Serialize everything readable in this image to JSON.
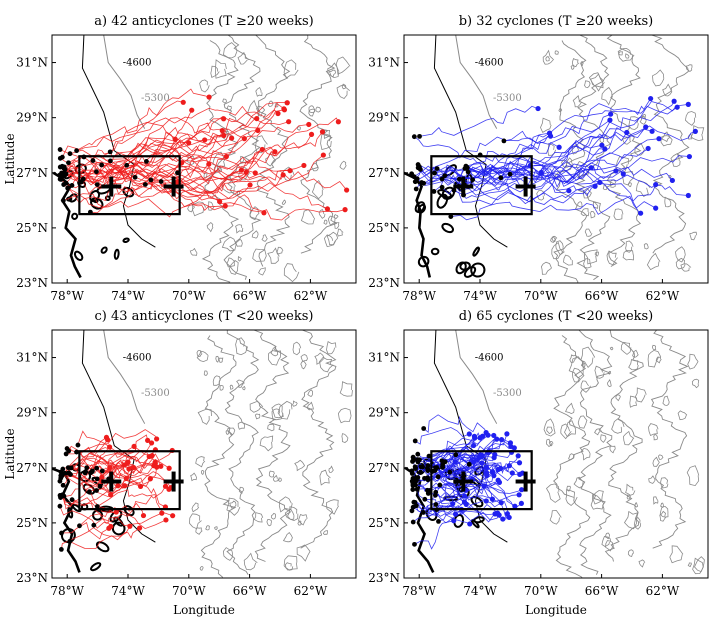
{
  "figure": {
    "x_label": "Longitude",
    "y_label": "Latitude",
    "lon_ticks": [
      "78°W",
      "74°W",
      "70°W",
      "66°W",
      "62°W"
    ],
    "lat_ticks": [
      "31°N",
      "29°N",
      "27°N",
      "25°N",
      "23°N"
    ],
    "contour_labels": [
      "-4600",
      "-5300"
    ],
    "lon_range_deg": [
      -79,
      -59
    ],
    "lat_range_deg": [
      23,
      32
    ],
    "box_deg": {
      "lon": [
        -77.2,
        -70.6
      ],
      "lat": [
        25.5,
        27.6
      ]
    },
    "cross_markers_deg": [
      [
        -75.1,
        26.5
      ],
      [
        -71.0,
        26.5
      ]
    ],
    "colors": {
      "anticyclone": "#ee1c1c",
      "cyclone": "#2020f0",
      "bathymetry": "#8a8a8a",
      "coast": "#000000"
    }
  },
  "panels": [
    {
      "id": "a",
      "title": "a) 42 anticyclones (T ≥20 weeks)",
      "color": "#ee1c1c",
      "count": 42,
      "group": "long"
    },
    {
      "id": "b",
      "title": "b) 32 cyclones (T ≥20 weeks)",
      "color": "#2020f0",
      "count": 32,
      "group": "long"
    },
    {
      "id": "c",
      "title": "c) 43 anticyclones (T <20 weeks)",
      "color": "#ee1c1c",
      "count": 43,
      "group": "short"
    },
    {
      "id": "d",
      "title": "d) 65 cyclones (T <20 weeks)",
      "color": "#2020f0",
      "count": 65,
      "group": "short"
    }
  ]
}
